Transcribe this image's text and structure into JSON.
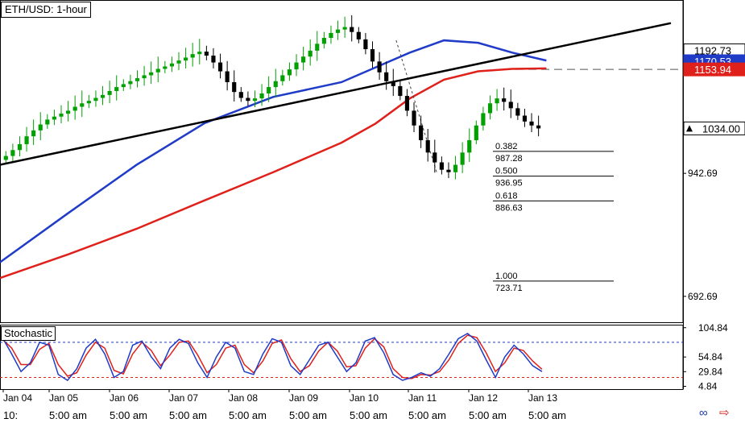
{
  "chart": {
    "title": "ETH/USD: 1-hour",
    "indicator_label": "Stochastic"
  },
  "icons": {
    "link": "link-icon",
    "arrow": "right-arrow-icon"
  },
  "colors": {
    "up_candle": "#00a000",
    "down_candle": "#000000",
    "sma_fast": "#1f3bc8",
    "sma_slow": "#e0201a",
    "trendline": "#000000",
    "stoch_k": "#1f3bc8",
    "stoch_d": "#e0201a"
  },
  "chart_data": [
    {
      "type": "line",
      "title": "ETH/USD: 1-hour",
      "x_labels": [
        "Jan 04",
        "Jan 05",
        "Jan 06",
        "Jan 07",
        "Jan 08",
        "Jan 09",
        "Jan 10",
        "Jan 11",
        "Jan 12",
        "Jan 13"
      ],
      "x_time_labels": [
        "10:",
        "5:00 am",
        "5:00 am",
        "5:00 am",
        "5:00 am",
        "5:00 am",
        "5:00 am",
        "5:00 am",
        "5:00 am",
        "5:00 am"
      ],
      "ylim": [
        640,
        1295
      ],
      "y_ticks": [
        "942.69",
        "692.69"
      ],
      "price_tags": [
        {
          "label": "1192.73",
          "value": 1192.73,
          "style": "plain"
        },
        {
          "label": "1170.53",
          "value": 1170.53,
          "style": "blue"
        },
        {
          "label": "1153.94",
          "value": 1153.94,
          "style": "red"
        },
        {
          "label": "1034.00",
          "value": 1034.0,
          "style": "current"
        }
      ],
      "dashed_level": 1153.94,
      "candles_close": [
        978,
        990,
        1002,
        1018,
        1030,
        1042,
        1052,
        1058,
        1064,
        1070,
        1078,
        1085,
        1090,
        1096,
        1102,
        1110,
        1118,
        1124,
        1130,
        1136,
        1142,
        1148,
        1155,
        1160,
        1166,
        1172,
        1178,
        1185,
        1190,
        1182,
        1168,
        1150,
        1128,
        1108,
        1096,
        1090,
        1095,
        1105,
        1118,
        1130,
        1142,
        1154,
        1168,
        1180,
        1192,
        1206,
        1218,
        1228,
        1235,
        1240,
        1230,
        1215,
        1195,
        1170,
        1148,
        1130,
        1120,
        1100,
        1070,
        1040,
        1010,
        985,
        965,
        950,
        945,
        960,
        985,
        1010,
        1040,
        1065,
        1085,
        1095,
        1088,
        1075,
        1060,
        1048,
        1040,
        1034
      ],
      "sma_blue": {
        "name": "",
        "x_frac": [
          0.0,
          0.1,
          0.2,
          0.3,
          0.4,
          0.5,
          0.55,
          0.6,
          0.65,
          0.7,
          0.75,
          0.8
        ],
        "values": [
          762,
          862,
          960,
          1045,
          1098,
          1128,
          1158,
          1188,
          1213,
          1208,
          1188,
          1172
        ]
      },
      "sma_red": {
        "name": "",
        "x_frac": [
          0.0,
          0.1,
          0.2,
          0.3,
          0.4,
          0.5,
          0.55,
          0.6,
          0.65,
          0.7,
          0.75,
          0.8
        ],
        "values": [
          730,
          778,
          830,
          888,
          945,
          1005,
          1044,
          1095,
          1133,
          1150,
          1155,
          1156
        ]
      },
      "trendline": {
        "x_frac": [
          0.0,
          1.0
        ],
        "values": [
          960,
          1248
        ]
      },
      "swing_line": {
        "x_frac": [
          0.58,
          0.64
        ],
        "values": [
          1213,
          942
        ]
      },
      "fibonacci": [
        {
          "ratio": "0.382",
          "price": "987.28",
          "value": 987.28
        },
        {
          "ratio": "0.500",
          "price": "936.95",
          "value": 936.95
        },
        {
          "ratio": "0.618",
          "price": "886.63",
          "value": 886.63
        },
        {
          "ratio": "1.000",
          "price": "723.71",
          "value": 723.71
        }
      ]
    },
    {
      "type": "line",
      "title": "Stochastic",
      "ylim": [
        0,
        110
      ],
      "y_ticks": [
        "104.84",
        "54.84",
        "29.84",
        "4.84"
      ],
      "levels": [
        80,
        20
      ],
      "k_values": [
        88,
        60,
        30,
        45,
        80,
        75,
        25,
        15,
        35,
        70,
        85,
        60,
        20,
        30,
        75,
        82,
        55,
        35,
        70,
        85,
        78,
        45,
        20,
        55,
        80,
        70,
        30,
        25,
        60,
        86,
        80,
        40,
        25,
        50,
        75,
        80,
        55,
        30,
        45,
        82,
        88,
        62,
        25,
        15,
        20,
        28,
        22,
        35,
        60,
        86,
        95,
        82,
        50,
        20,
        55,
        75,
        60,
        40,
        30
      ],
      "d_values": [
        85,
        70,
        42,
        42,
        68,
        78,
        42,
        22,
        28,
        58,
        80,
        70,
        32,
        26,
        60,
        80,
        66,
        40,
        58,
        80,
        82,
        58,
        28,
        42,
        70,
        75,
        42,
        28,
        48,
        78,
        84,
        52,
        30,
        40,
        65,
        80,
        65,
        38,
        40,
        70,
        86,
        72,
        35,
        20,
        18,
        25,
        24,
        30,
        50,
        78,
        92,
        88,
        62,
        30,
        45,
        70,
        66,
        48,
        34
      ]
    }
  ]
}
